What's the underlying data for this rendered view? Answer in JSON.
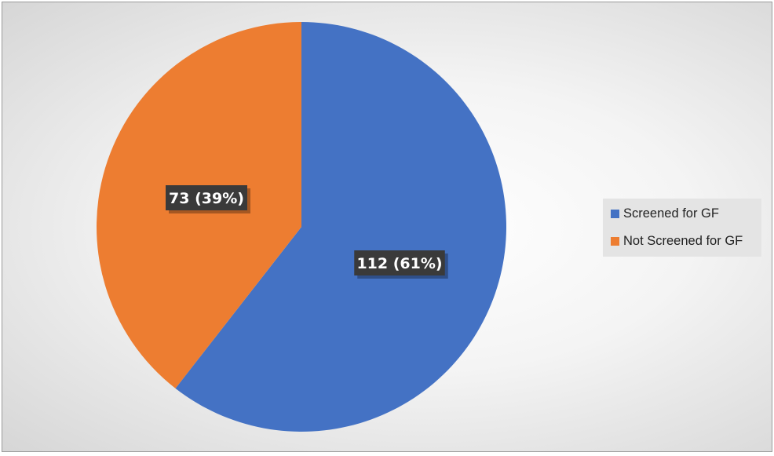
{
  "chart_data": {
    "type": "pie",
    "categories": [
      "Screened for GF",
      "Not Screened for GF"
    ],
    "values": [
      112,
      73
    ],
    "percentages": [
      61,
      39
    ],
    "data_labels": [
      "112 (61%)",
      "73 (39%)"
    ],
    "colors": [
      "#4472c4",
      "#ed7d31"
    ],
    "start_angle": "12 o'clock, clockwise",
    "legend_position": "right"
  }
}
